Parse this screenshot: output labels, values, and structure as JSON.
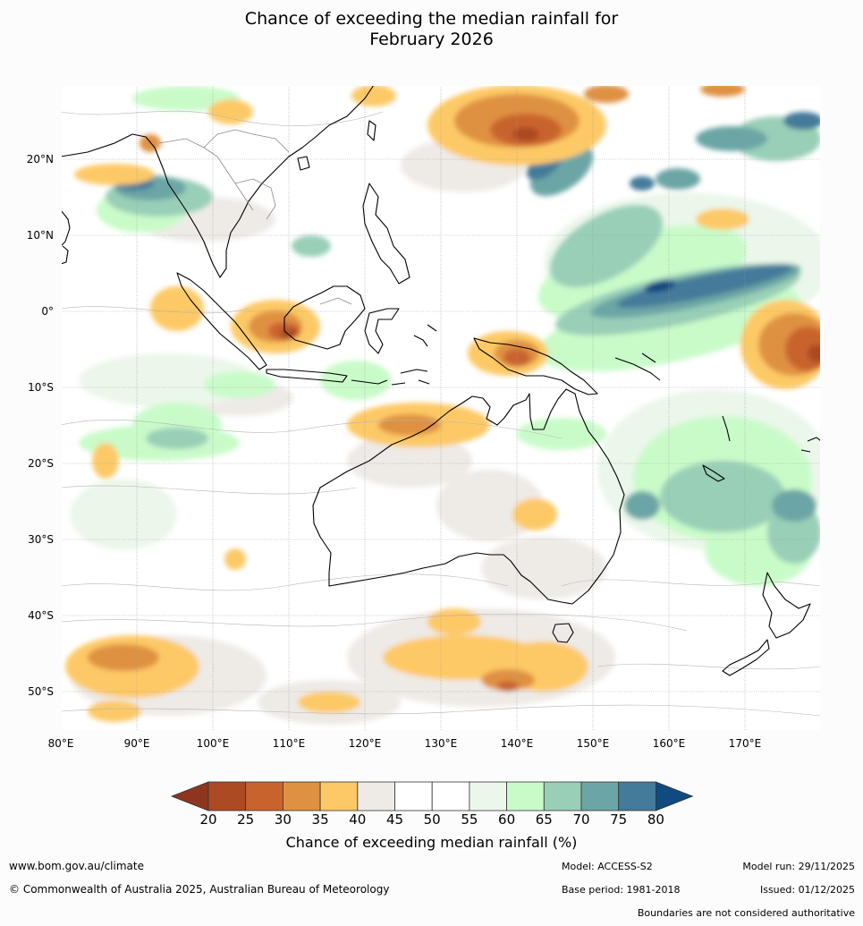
{
  "title_line1": "Chance of exceeding the median rainfall for",
  "title_line2": "February 2026",
  "lat_labels": [
    "20°N",
    "10°N",
    "0°",
    "10°S",
    "20°S",
    "30°S",
    "40°S",
    "50°S"
  ],
  "lon_labels": [
    "80°E",
    "90°E",
    "100°E",
    "110°E",
    "120°E",
    "130°E",
    "140°E",
    "150°E",
    "160°E",
    "170°E"
  ],
  "colorbar": {
    "ticks": [
      "20",
      "25",
      "30",
      "35",
      "40",
      "45",
      "50",
      "55",
      "60",
      "65",
      "70",
      "75",
      "80"
    ],
    "colors": [
      "#ac4a24",
      "#c9632e",
      "#df9142",
      "#fdc966",
      "#eeeae6",
      "#ffffff",
      "#ffffff",
      "#ebf7ea",
      "#c9fbc9",
      "#99cfb7",
      "#6ca5a5",
      "#447a9a"
    ],
    "under_color": "#8e3520",
    "over_color": "#0f4a80",
    "label": "Chance of exceeding median rainfall (%)"
  },
  "footer": {
    "website": "www.bom.gov.au/climate",
    "copyright": "© Commonwealth of Australia 2025, Australian Bureau of Meteorology",
    "model": "Model: ACCESS-S2",
    "base_period": "Base period: 1981-2018",
    "model_run": "Model run: 29/11/2025",
    "issued": "Issued: 01/12/2025",
    "disclaimer": "Boundaries are not considered authoritative"
  }
}
